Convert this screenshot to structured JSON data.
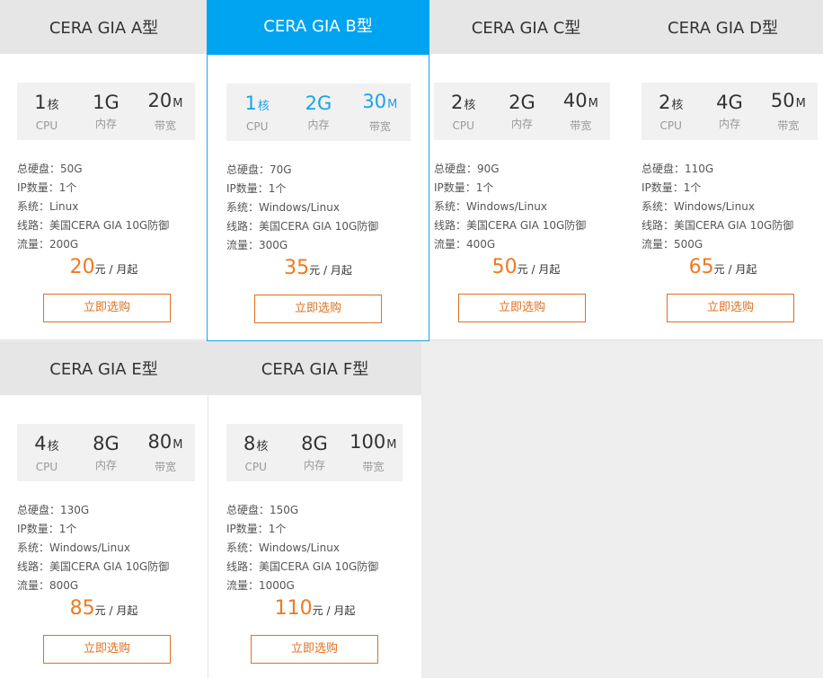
{
  "plans": [
    {
      "title": "CERA GIA A型",
      "cpu": "1",
      "cpu_unit": "核",
      "cpu_label": "CPU",
      "mem": "1G",
      "mem_label": "内存",
      "bw": "20",
      "bw_unit": "M",
      "bw_label": "带宽",
      "disk": "总硬盘：50G",
      "ip": "IP数量：1个",
      "os": "系统：Linux",
      "line": "线路：美国CERA GIA 10G防御",
      "traffic": "流量：200G",
      "price": "20",
      "price_unit": "元 / 月起",
      "buy": "立即选购"
    },
    {
      "title": "CERA GIA B型",
      "cpu": "1",
      "cpu_unit": "核",
      "cpu_label": "CPU",
      "mem": "2G",
      "mem_label": "内存",
      "bw": "30",
      "bw_unit": "M",
      "bw_label": "带宽",
      "disk": "总硬盘：70G",
      "ip": "IP数量：1个",
      "os": "系统：Windows/Linux",
      "line": "线路：美国CERA GIA 10G防御",
      "traffic": "流量：300G",
      "price": "35",
      "price_unit": "元 / 月起",
      "buy": "立即选购"
    },
    {
      "title": "CERA GIA C型",
      "cpu": "2",
      "cpu_unit": "核",
      "cpu_label": "CPU",
      "mem": "2G",
      "mem_label": "内存",
      "bw": "40",
      "bw_unit": "M",
      "bw_label": "带宽",
      "disk": "总硬盘：90G",
      "ip": "IP数量：1个",
      "os": "系统：Windows/Linux",
      "line": "线路：美国CERA GIA 10G防御",
      "traffic": "流量：400G",
      "price": "50",
      "price_unit": "元 / 月起",
      "buy": "立即选购"
    },
    {
      "title": "CERA GIA D型",
      "cpu": "2",
      "cpu_unit": "核",
      "cpu_label": "CPU",
      "mem": "4G",
      "mem_label": "内存",
      "bw": "50",
      "bw_unit": "M",
      "bw_label": "带宽",
      "disk": "总硬盘：110G",
      "ip": "IP数量：1个",
      "os": "系统：Windows/Linux",
      "line": "线路：美国CERA GIA 10G防御",
      "traffic": "流量：500G",
      "price": "65",
      "price_unit": "元 / 月起",
      "buy": "立即选购"
    },
    {
      "title": "CERA GIA E型",
      "cpu": "4",
      "cpu_unit": "核",
      "cpu_label": "CPU",
      "mem": "8G",
      "mem_label": "内存",
      "bw": "80",
      "bw_unit": "M",
      "bw_label": "带宽",
      "disk": "总硬盘：130G",
      "ip": "IP数量：1个",
      "os": "系统：Windows/Linux",
      "line": "线路：美国CERA GIA 10G防御",
      "traffic": "流量：800G",
      "price": "85",
      "price_unit": "元 / 月起",
      "buy": "立即选购"
    },
    {
      "title": "CERA GIA F型",
      "cpu": "8",
      "cpu_unit": "核",
      "cpu_label": "CPU",
      "mem": "8G",
      "mem_label": "内存",
      "bw": "100",
      "bw_unit": "M",
      "bw_label": "带宽",
      "disk": "总硬盘：150G",
      "ip": "IP数量：1个",
      "os": "系统：Windows/Linux",
      "line": "线路：美国CERA GIA 10G防御",
      "traffic": "流量：1000G",
      "price": "110",
      "price_unit": "元 / 月起",
      "buy": "立即选购"
    }
  ],
  "colors": {
    "accent": "#00a3ef",
    "price": "#f07a1f",
    "button": "#e07020"
  }
}
